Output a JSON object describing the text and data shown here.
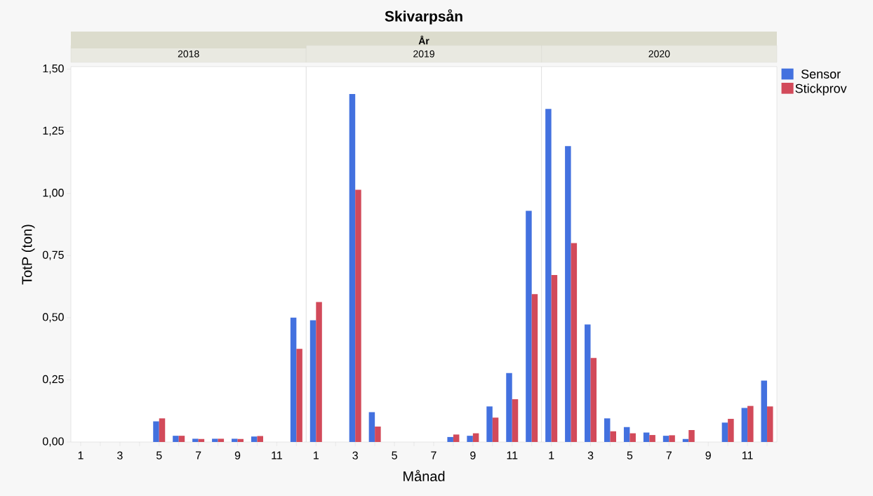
{
  "chart_data": [
    {
      "type": "bar",
      "title": "2018",
      "annotations": [
        "Skivarpsån",
        "År"
      ],
      "ylabel": "TotP (ton)",
      "categories": [
        "1",
        null,
        "3",
        null,
        "5",
        null,
        "7",
        null,
        "9",
        null,
        "11",
        null
      ],
      "ylim": [
        0,
        1.51
      ],
      "yticks": [
        {
          "value": 0,
          "label": "0,00"
        },
        {
          "value": 0.25,
          "label": "0,25"
        },
        {
          "value": 0.5,
          "label": "0,50"
        },
        {
          "value": 0.75,
          "label": "0,75"
        },
        {
          "value": 1.0,
          "label": "1,00"
        },
        {
          "value": 1.25,
          "label": "1,25"
        },
        {
          "value": 1.5,
          "label": "1,50"
        }
      ],
      "series": [
        {
          "color": "#4371df",
          "values": [
            null,
            null,
            null,
            null,
            0.083,
            0.025,
            0.013,
            0.013,
            0.013,
            0.022,
            null,
            0.5
          ]
        },
        {
          "color": "#d24a5a",
          "values": [
            null,
            null,
            null,
            null,
            0.095,
            0.025,
            0.012,
            0.013,
            0.012,
            0.024,
            null,
            0.375
          ]
        }
      ]
    },
    {
      "type": "bar",
      "title": "2019",
      "xlabel": "Månad",
      "tick_labels": "x",
      "categories": [
        "1",
        null,
        "3",
        null,
        "5",
        null,
        "7",
        null,
        "9",
        null,
        "11",
        null
      ],
      "ylim": [
        0,
        1.51
      ],
      "series": [
        {
          "color": "#4371df",
          "values": [
            0.49,
            null,
            1.4,
            0.12,
            null,
            null,
            null,
            0.02,
            0.025,
            0.143,
            0.277,
            0.93
          ]
        },
        {
          "color": "#d24a5a",
          "values": [
            0.563,
            null,
            1.015,
            0.062,
            null,
            null,
            null,
            0.03,
            0.035,
            0.098,
            0.172,
            0.595
          ]
        }
      ]
    },
    {
      "type": "bar",
      "title": "2020",
      "tick_labels": "x",
      "legend": "top right",
      "categories": [
        "1",
        null,
        "3",
        null,
        "5",
        null,
        "7",
        null,
        "9",
        null,
        "11",
        null
      ],
      "ylim": [
        0,
        1.51
      ],
      "series": [
        {
          "name": "Sensor",
          "color": "#4371df",
          "values": [
            1.34,
            1.19,
            0.473,
            0.095,
            0.06,
            0.038,
            0.025,
            0.012,
            null,
            0.078,
            0.137,
            0.247
          ]
        },
        {
          "name": "Stickprov",
          "color": "#d24a5a",
          "values": [
            0.672,
            0.8,
            0.338,
            0.043,
            0.035,
            0.028,
            0.027,
            0.048,
            null,
            0.093,
            0.145,
            0.143
          ]
        }
      ]
    }
  ]
}
